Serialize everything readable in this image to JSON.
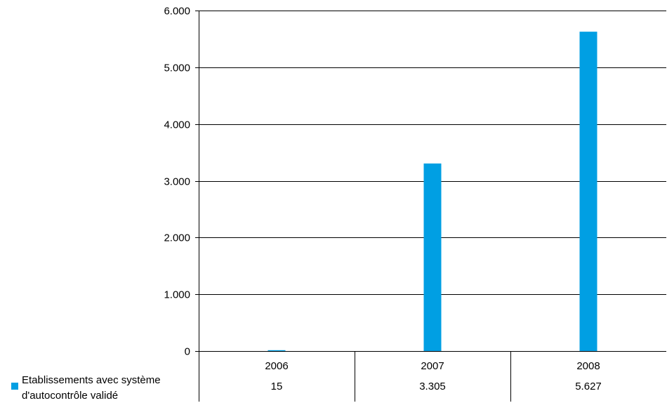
{
  "chart_data": {
    "type": "bar",
    "categories": [
      "2006",
      "2007",
      "2008"
    ],
    "series": [
      {
        "name": "Etablissements avec système d'autocontrôle validé",
        "name_lines": [
          "Etablissements avec système",
          "d'autocontrôle validé"
        ],
        "values": [
          15,
          3305,
          5627
        ],
        "value_labels": [
          "15",
          "3.305",
          "5.627"
        ],
        "color": "#009fe3"
      }
    ],
    "yticks": [
      0,
      1000,
      2000,
      3000,
      4000,
      5000,
      6000
    ],
    "ytick_labels": [
      "0",
      "1.000",
      "2.000",
      "3.000",
      "4.000",
      "5.000",
      "6.000"
    ],
    "ylim": [
      0,
      6000
    ],
    "grid": true,
    "legend": "bottom-left",
    "title": "",
    "xlabel": "",
    "ylabel": ""
  }
}
